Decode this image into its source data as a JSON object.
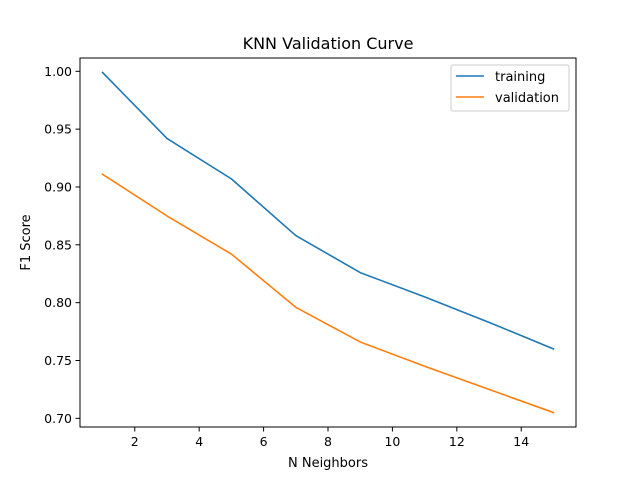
{
  "chart_data": {
    "type": "line",
    "title": "KNN Validation Curve",
    "xlabel": "N Neighbors",
    "ylabel": "F1 Score",
    "x": [
      1,
      3,
      5,
      7,
      9,
      11,
      13,
      15
    ],
    "series": [
      {
        "name": "training",
        "color": "#1f77b4",
        "values": [
          0.999,
          0.942,
          0.907,
          0.858,
          0.826,
          0.805,
          0.783,
          0.76
        ]
      },
      {
        "name": "validation",
        "color": "#ff7f0e",
        "values": [
          0.911,
          0.875,
          0.842,
          0.796,
          0.766,
          0.745,
          0.725,
          0.705
        ]
      }
    ],
    "xlim": [
      0.3,
      15.7
    ],
    "ylim": [
      0.6925,
      1.0115
    ],
    "xticks": [
      2,
      4,
      6,
      8,
      10,
      12,
      14
    ],
    "xtick_labels": [
      "2",
      "4",
      "6",
      "8",
      "10",
      "12",
      "14"
    ],
    "yticks": [
      0.7,
      0.75,
      0.8,
      0.85,
      0.9,
      0.95,
      1.0
    ],
    "ytick_labels": [
      "0.70",
      "0.75",
      "0.80",
      "0.85",
      "0.90",
      "0.95",
      "1.00"
    ],
    "grid": false,
    "legend_position": "top-right"
  }
}
